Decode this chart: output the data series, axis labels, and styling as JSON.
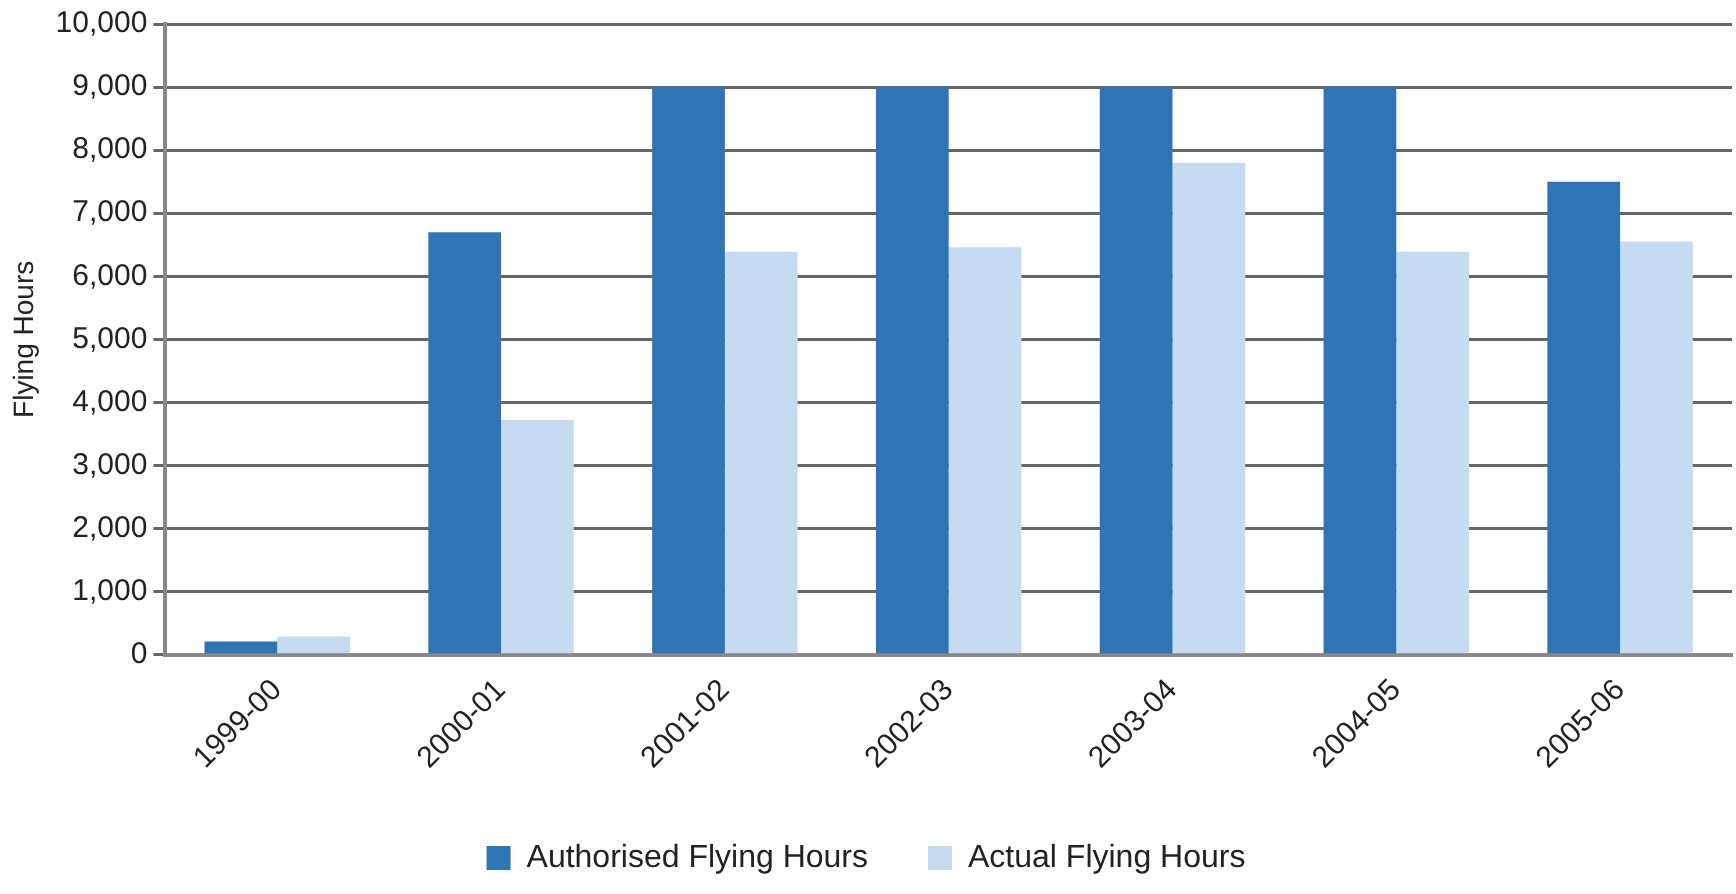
{
  "chart_data": {
    "type": "bar",
    "ylabel": "Flying Hours",
    "categories": [
      "1999-00",
      "2000-01",
      "2001-02",
      "2002-03",
      "2003-04",
      "2004-05",
      "2005-06"
    ],
    "series": [
      {
        "name": "Authorised Flying Hours",
        "color": "#2e75b6",
        "values": [
          210,
          6700,
          9000,
          9000,
          9000,
          9000,
          7500
        ]
      },
      {
        "name": "Actual Flying Hours",
        "color": "#c5dbf1",
        "values": [
          290,
          3720,
          6390,
          6460,
          7800,
          6390,
          6550
        ]
      }
    ],
    "ylim": [
      0,
      10000
    ],
    "yticks": [
      {
        "value": 0,
        "label": "0"
      },
      {
        "value": 1000,
        "label": "1,000"
      },
      {
        "value": 2000,
        "label": "2,000"
      },
      {
        "value": 3000,
        "label": "3,000"
      },
      {
        "value": 4000,
        "label": "4,000"
      },
      {
        "value": 5000,
        "label": "5,000"
      },
      {
        "value": 6000,
        "label": "6,000"
      },
      {
        "value": 7000,
        "label": "7,000"
      },
      {
        "value": 8000,
        "label": "8,000"
      },
      {
        "value": 9000,
        "label": "9,000"
      },
      {
        "value": 10000,
        "label": "10,000"
      }
    ],
    "grid": "y",
    "legend": "bottom"
  }
}
